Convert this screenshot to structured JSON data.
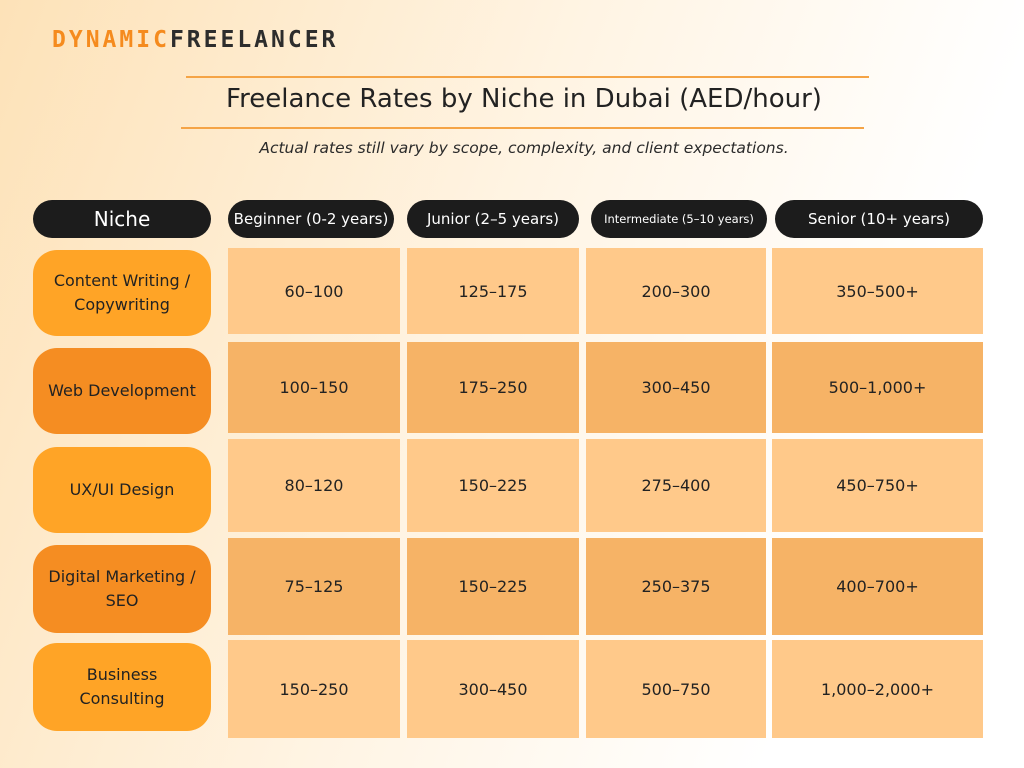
{
  "logo": {
    "part1": "DYNAMIC",
    "part2": "FREELANCER"
  },
  "chart_data": {
    "type": "table",
    "title": "Freelance Rates by Niche in Dubai (AED/hour)",
    "subtitle": "Actual rates still vary by scope, complexity, and client expectations.",
    "columns": [
      "Niche",
      "Beginner (0-2 years)",
      "Junior (2–5 years)",
      "Intermediate (5–10 years)",
      "Senior (10+ years)"
    ],
    "rows": [
      {
        "niche": "Content Writing / Copywriting",
        "values": [
          "60–100",
          "125–175",
          "200–300",
          "350–500+"
        ]
      },
      {
        "niche": "Web Development",
        "values": [
          "100–150",
          "175–250",
          "300–450",
          "500–1,000+"
        ]
      },
      {
        "niche": "UX/UI Design",
        "values": [
          "80–120",
          "150–225",
          "275–400",
          "450–750+"
        ]
      },
      {
        "niche": "Digital Marketing / SEO",
        "values": [
          "75–125",
          "150–225",
          "250–375",
          "400–700+"
        ]
      },
      {
        "niche": "Business Consulting",
        "values": [
          "150–250",
          "300–450",
          "500–750",
          "1,000–2,000+"
        ]
      }
    ]
  },
  "colors": {
    "accent_orange": "#f58b1e",
    "header_dark": "#1c1c1c",
    "row_light": "#ffc98a",
    "row_dark": "#f6b366",
    "pill_light": "#ffa426",
    "pill_dark": "#f58d22"
  }
}
